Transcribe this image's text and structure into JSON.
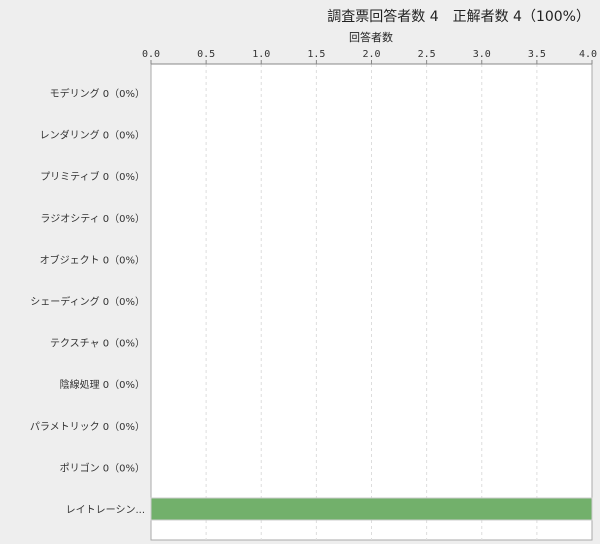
{
  "chart_data": {
    "type": "bar",
    "orientation": "horizontal",
    "title": "調査票回答者数 4　正解者数 4（100%）",
    "xlabel": "回答者数",
    "xlim": [
      0,
      4.0
    ],
    "ticks": [
      "0.0",
      "0.5",
      "1.0",
      "1.5",
      "2.0",
      "2.5",
      "3.0",
      "3.5",
      "4.0"
    ],
    "categories": [
      "モデリング 0（0%）",
      "レンダリング 0（0%）",
      "プリミティブ 0（0%）",
      "ラジオシティ 0（0%）",
      "オブジェクト 0（0%）",
      "シェーディング 0（0%）",
      "テクスチャ 0（0%）",
      "陰線処理 0（0%）",
      "パラメトリック 0（0%）",
      "ポリゴン 0（0%）",
      "レイトレーシン..."
    ],
    "values": [
      0,
      0,
      0,
      0,
      0,
      0,
      0,
      0,
      0,
      0,
      4
    ],
    "bar_color": "#72b06b",
    "grid": true,
    "legend": "none"
  }
}
